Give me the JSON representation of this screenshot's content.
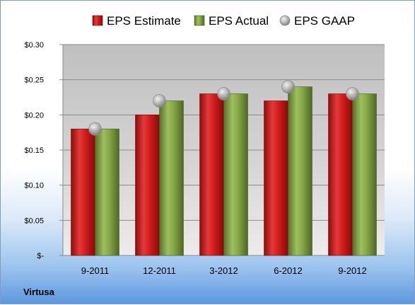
{
  "company": "Virtusa",
  "colors": {
    "estimate": "#c81818",
    "actual": "#7a9a3a",
    "gaap": "#a8a8a8"
  },
  "chart_data": {
    "type": "bar",
    "categories": [
      "9-2011",
      "12-2011",
      "3-2012",
      "6-2012",
      "9-2012"
    ],
    "series": [
      {
        "name": "EPS Estimate",
        "values": [
          0.18,
          0.2,
          0.23,
          0.22,
          0.23
        ]
      },
      {
        "name": "EPS Actual",
        "values": [
          0.18,
          0.22,
          0.23,
          0.24,
          0.23
        ]
      },
      {
        "name": "EPS GAAP",
        "type": "scatter",
        "values": [
          0.18,
          0.22,
          0.23,
          0.24,
          0.23
        ]
      }
    ],
    "yticks": [
      "$-",
      "$0.05",
      "$0.10",
      "$0.15",
      "$0.20",
      "$0.25",
      "$0.30"
    ],
    "ylim": [
      0,
      0.3
    ],
    "grid": true,
    "legend": "top"
  }
}
